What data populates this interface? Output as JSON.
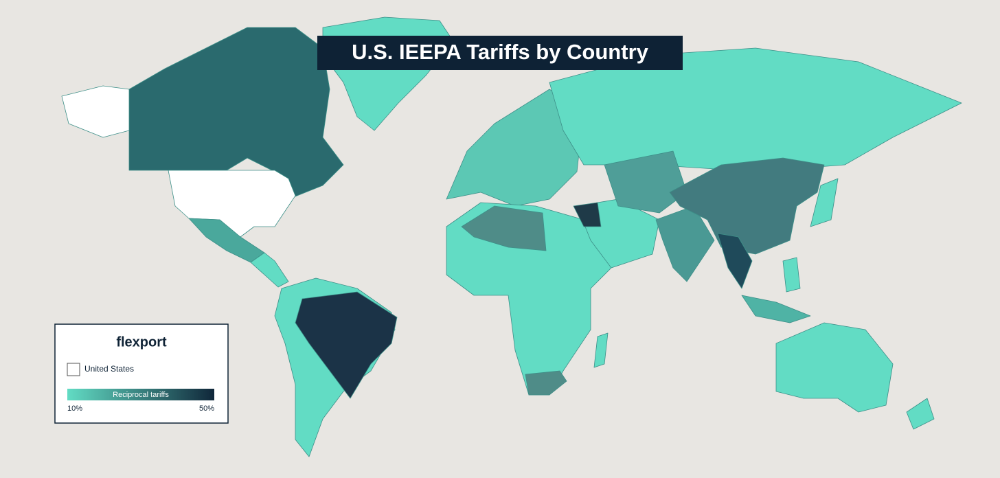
{
  "title": "U.S. IEEPA Tariffs by Country",
  "legend": {
    "brand": "flexport",
    "items": [
      "United States"
    ],
    "scale": {
      "label": "Reciprocal tariffs",
      "min_label": "10%",
      "max_label": "50%"
    }
  }
}
